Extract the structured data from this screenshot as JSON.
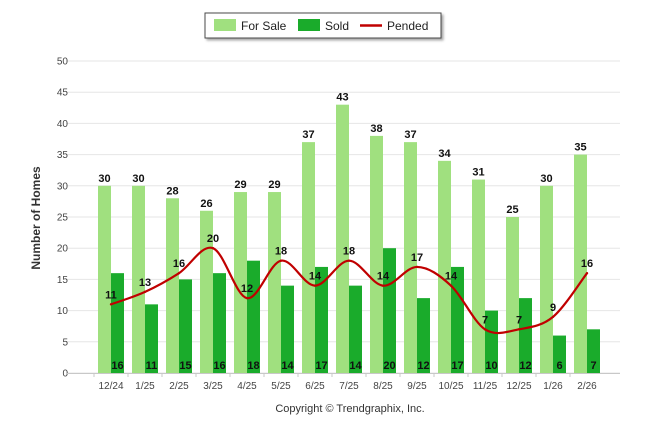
{
  "chart_data": {
    "type": "bar",
    "categories": [
      "12/24",
      "1/25",
      "2/25",
      "3/25",
      "4/25",
      "5/25",
      "6/25",
      "7/25",
      "8/25",
      "9/25",
      "10/25",
      "11/25",
      "12/25",
      "1/26",
      "2/26"
    ],
    "series": [
      {
        "name": "For Sale",
        "type": "bar",
        "color": "#a0e07f",
        "values": [
          30,
          30,
          28,
          26,
          29,
          29,
          37,
          43,
          38,
          37,
          34,
          31,
          25,
          30,
          35
        ]
      },
      {
        "name": "Sold",
        "type": "bar",
        "color": "#1aab2b",
        "values": [
          16,
          11,
          15,
          16,
          18,
          14,
          17,
          14,
          20,
          12,
          17,
          10,
          12,
          6,
          7
        ]
      },
      {
        "name": "Pended",
        "type": "line",
        "color": "#c00000",
        "values": [
          11,
          13,
          16,
          20,
          12,
          18,
          14,
          18,
          14,
          17,
          14,
          7,
          7,
          9,
          16
        ]
      }
    ],
    "ylabel": "Number of Homes",
    "xlabel": "",
    "ylim": [
      0,
      50
    ],
    "yticks": [
      0,
      5,
      10,
      15,
      20,
      25,
      30,
      35,
      40,
      45,
      50
    ],
    "grid": true,
    "legend_position": "top-center"
  },
  "credit": "Copyright © Trendgraphix, Inc."
}
